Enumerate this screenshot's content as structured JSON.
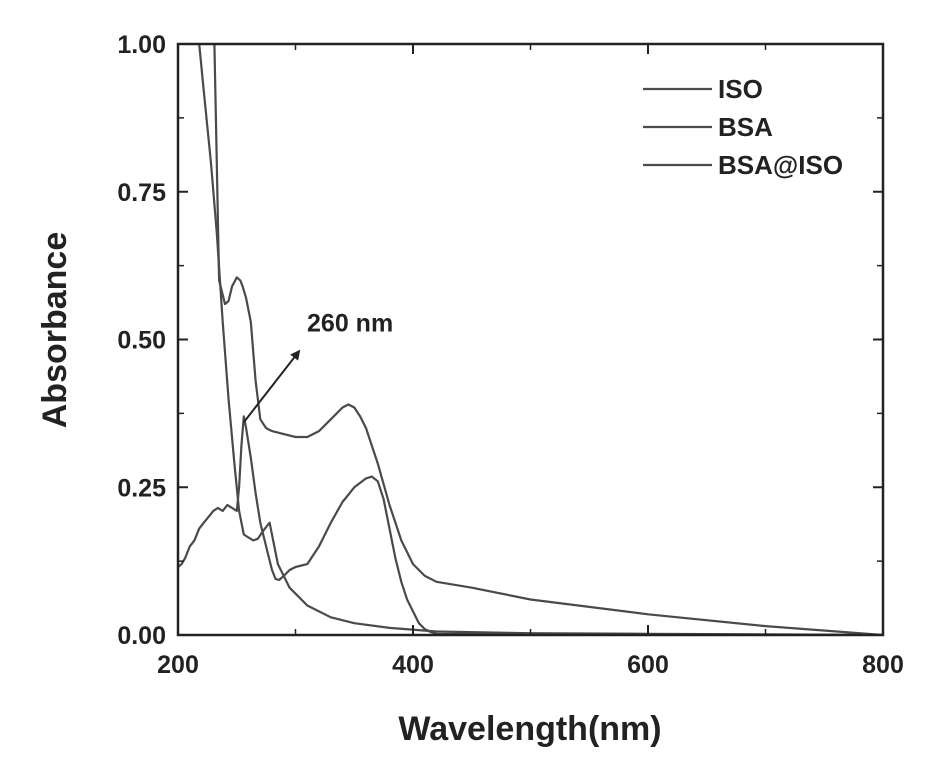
{
  "chart_data": {
    "type": "line",
    "title": "",
    "xlabel": "Wavelength(nm)",
    "ylabel": "Absorbance",
    "xlim": [
      200,
      800
    ],
    "ylim": [
      0,
      1.0
    ],
    "xticks": [
      200,
      400,
      600,
      800
    ],
    "xtick_labels": [
      "200",
      "400",
      "600",
      "800"
    ],
    "yticks": [
      0,
      0.25,
      0.5,
      0.75,
      1.0
    ],
    "ytick_labels": [
      "0.00",
      "0.25",
      "0.50",
      "0.75",
      "1.00"
    ],
    "grid": false,
    "legend_position": "top-right",
    "line_color": "#4a4a4a",
    "series": [
      {
        "name": "ISO",
        "x": [
          218,
          222,
          228,
          233,
          238,
          243,
          248,
          252,
          256,
          260,
          264,
          268,
          272,
          278,
          285,
          295,
          310,
          330,
          350,
          380,
          420,
          500,
          600,
          700,
          800
        ],
        "y": [
          1.0,
          0.92,
          0.8,
          0.68,
          0.53,
          0.4,
          0.29,
          0.21,
          0.17,
          0.165,
          0.16,
          0.163,
          0.175,
          0.19,
          0.12,
          0.08,
          0.05,
          0.03,
          0.02,
          0.012,
          0.006,
          0.003,
          0.002,
          0.001,
          0.0
        ]
      },
      {
        "name": "BSA",
        "x": [
          200,
          203,
          206,
          210,
          214,
          218,
          222,
          226,
          230,
          234,
          238,
          242,
          246,
          250,
          252,
          254,
          256,
          258,
          262,
          266,
          270,
          275,
          280,
          283,
          286,
          290,
          295,
          300,
          310,
          320,
          330,
          340,
          350,
          360,
          365,
          370,
          375,
          380,
          385,
          390,
          395,
          400,
          405,
          410,
          415,
          420,
          500,
          600,
          700,
          800
        ],
        "y": [
          0.115,
          0.12,
          0.13,
          0.15,
          0.16,
          0.18,
          0.19,
          0.2,
          0.21,
          0.215,
          0.21,
          0.22,
          0.215,
          0.21,
          0.25,
          0.32,
          0.37,
          0.35,
          0.3,
          0.24,
          0.19,
          0.15,
          0.11,
          0.095,
          0.093,
          0.1,
          0.11,
          0.115,
          0.12,
          0.15,
          0.19,
          0.225,
          0.25,
          0.265,
          0.268,
          0.26,
          0.23,
          0.18,
          0.13,
          0.09,
          0.06,
          0.04,
          0.02,
          0.01,
          0.005,
          0.002,
          0.001,
          0.0,
          0.0,
          0.0
        ]
      },
      {
        "name": "BSA@ISO",
        "x": [
          231,
          232,
          235,
          240,
          243,
          246,
          250,
          253,
          255,
          258,
          262,
          266,
          270,
          275,
          280,
          290,
          300,
          310,
          320,
          330,
          340,
          345,
          350,
          355,
          360,
          370,
          380,
          390,
          400,
          410,
          420,
          450,
          500,
          600,
          700,
          800
        ],
        "y": [
          1.0,
          0.9,
          0.6,
          0.56,
          0.565,
          0.59,
          0.605,
          0.6,
          0.59,
          0.57,
          0.53,
          0.43,
          0.365,
          0.35,
          0.345,
          0.34,
          0.335,
          0.335,
          0.345,
          0.365,
          0.385,
          0.39,
          0.385,
          0.37,
          0.35,
          0.29,
          0.22,
          0.16,
          0.12,
          0.1,
          0.09,
          0.08,
          0.06,
          0.035,
          0.015,
          0.0
        ]
      }
    ],
    "annotations": [
      {
        "text": "260 nm",
        "arrow_from": [
          256,
          0.36
        ],
        "arrow_to": [
          303,
          0.48
        ]
      }
    ]
  }
}
